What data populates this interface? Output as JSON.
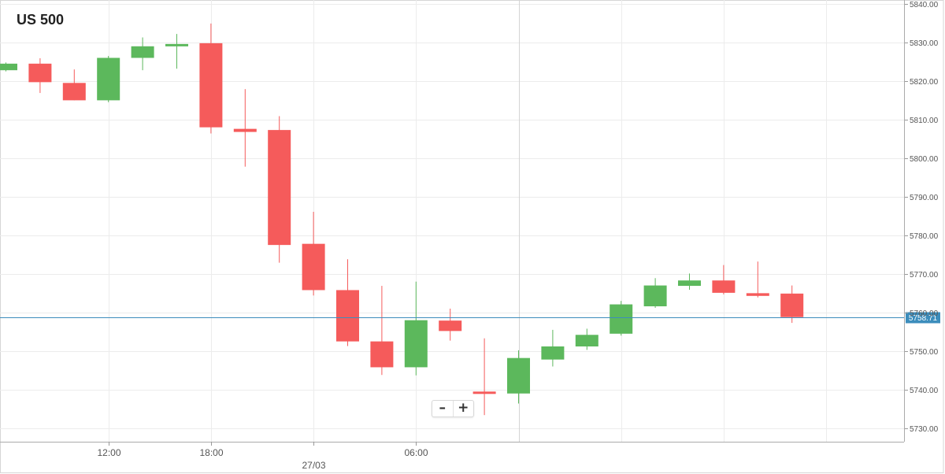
{
  "chart_data": {
    "type": "candlestick",
    "title": "US 500",
    "y_ticks": [
      5730,
      5740,
      5750,
      5760,
      5770,
      5780,
      5790,
      5800,
      5810,
      5820,
      5830,
      5840
    ],
    "y_tick_labels": [
      "5730.00",
      "5740.00",
      "5750.00",
      "5760.00",
      "5770.00",
      "5780.00",
      "5790.00",
      "5800.00",
      "5810.00",
      "5820.00",
      "5830.00",
      "5840.00"
    ],
    "ylim": [
      5726.5,
      5841
    ],
    "x_tick_labels": [
      "12:00",
      "18:00",
      "06:00"
    ],
    "date_label": "27/03",
    "current_price": 5758.71,
    "current_price_label": "5758.71",
    "colors": {
      "up": "#5cb85c",
      "down": "#f55b5b",
      "price_line": "#3c8dbc",
      "grid": "#ececec"
    },
    "candles": [
      {
        "open": 5822.8,
        "close": 5824.5,
        "high": 5824.8,
        "low": 5822.5
      },
      {
        "open": 5824.5,
        "close": 5819.7,
        "high": 5825.9,
        "low": 5816.9
      },
      {
        "open": 5819.5,
        "close": 5815.0,
        "high": 5823.0,
        "low": 5815.0
      },
      {
        "open": 5815.0,
        "close": 5826.0,
        "high": 5826.5,
        "low": 5814.5
      },
      {
        "open": 5826.0,
        "close": 5829.0,
        "high": 5831.3,
        "low": 5822.8
      },
      {
        "open": 5829.0,
        "close": 5829.6,
        "high": 5832.2,
        "low": 5823.2
      },
      {
        "open": 5829.8,
        "close": 5808.0,
        "high": 5834.9,
        "low": 5806.4
      },
      {
        "open": 5807.6,
        "close": 5806.8,
        "high": 5817.9,
        "low": 5797.8
      },
      {
        "open": 5807.3,
        "close": 5777.5,
        "high": 5810.9,
        "low": 5772.9
      },
      {
        "open": 5777.8,
        "close": 5765.8,
        "high": 5786.1,
        "low": 5764.4
      },
      {
        "open": 5765.8,
        "close": 5752.5,
        "high": 5773.8,
        "low": 5751.3
      },
      {
        "open": 5752.5,
        "close": 5745.8,
        "high": 5766.9,
        "low": 5743.8
      },
      {
        "open": 5745.8,
        "close": 5758.0,
        "high": 5768.0,
        "low": 5743.7
      },
      {
        "open": 5757.9,
        "close": 5755.2,
        "high": 5761.0,
        "low": 5752.7
      },
      {
        "open": 5739.5,
        "close": 5738.9,
        "high": 5753.3,
        "low": 5733.4
      },
      {
        "open": 5739.0,
        "close": 5748.2,
        "high": 5750.2,
        "low": 5736.4
      },
      {
        "open": 5747.8,
        "close": 5751.2,
        "high": 5755.5,
        "low": 5746.0
      },
      {
        "open": 5751.2,
        "close": 5754.2,
        "high": 5755.8,
        "low": 5750.3
      },
      {
        "open": 5754.5,
        "close": 5762.1,
        "high": 5763.0,
        "low": 5754.0
      },
      {
        "open": 5761.6,
        "close": 5767.0,
        "high": 5768.9,
        "low": 5761.2
      },
      {
        "open": 5766.9,
        "close": 5768.3,
        "high": 5770.1,
        "low": 5765.9
      },
      {
        "open": 5768.3,
        "close": 5765.1,
        "high": 5772.3,
        "low": 5764.7
      },
      {
        "open": 5765.0,
        "close": 5764.3,
        "high": 5773.2,
        "low": 5763.9
      },
      {
        "open": 5764.9,
        "close": 5758.8,
        "high": 5767.0,
        "low": 5757.3
      }
    ]
  },
  "zoom": {
    "minus": "–",
    "plus": "+"
  }
}
